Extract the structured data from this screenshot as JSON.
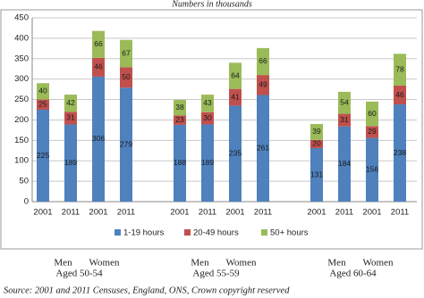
{
  "chart_data": {
    "type": "stacked-bar",
    "title": "Numbers in thousands",
    "categories": [
      "2001",
      "2011",
      "2001",
      "2011",
      "2001",
      "2011",
      "2001",
      "2011",
      "2001",
      "2011",
      "2001",
      "2011"
    ],
    "groups": [
      {
        "sexes": [
          "Men",
          "Women"
        ],
        "age": "Aged 50-54"
      },
      {
        "sexes": [
          "Men",
          "Women"
        ],
        "age": "Aged 55-59"
      },
      {
        "sexes": [
          "Men",
          "Women"
        ],
        "age": "Aged 60-64"
      }
    ],
    "series": [
      {
        "name": "1-19 hours",
        "color": "#4f81bd",
        "values": [
          225,
          189,
          306,
          279,
          188,
          189,
          235,
          261,
          131,
          184,
          156,
          238
        ]
      },
      {
        "name": "20-49 hours",
        "color": "#c0504d",
        "values": [
          25,
          31,
          46,
          50,
          23,
          30,
          41,
          49,
          20,
          31,
          29,
          46
        ]
      },
      {
        "name": "50+ hours",
        "color": "#9bbb59",
        "values": [
          40,
          42,
          66,
          67,
          38,
          43,
          64,
          66,
          39,
          54,
          60,
          78
        ]
      }
    ],
    "ylim": [
      0,
      450
    ],
    "yticks": [
      0,
      50,
      100,
      150,
      200,
      250,
      300,
      350,
      400,
      450
    ],
    "grid": true,
    "legend": "bottom",
    "source": "Source: 2001 and 2011 Censuses, England, ONS, Crown copyright reserved"
  }
}
